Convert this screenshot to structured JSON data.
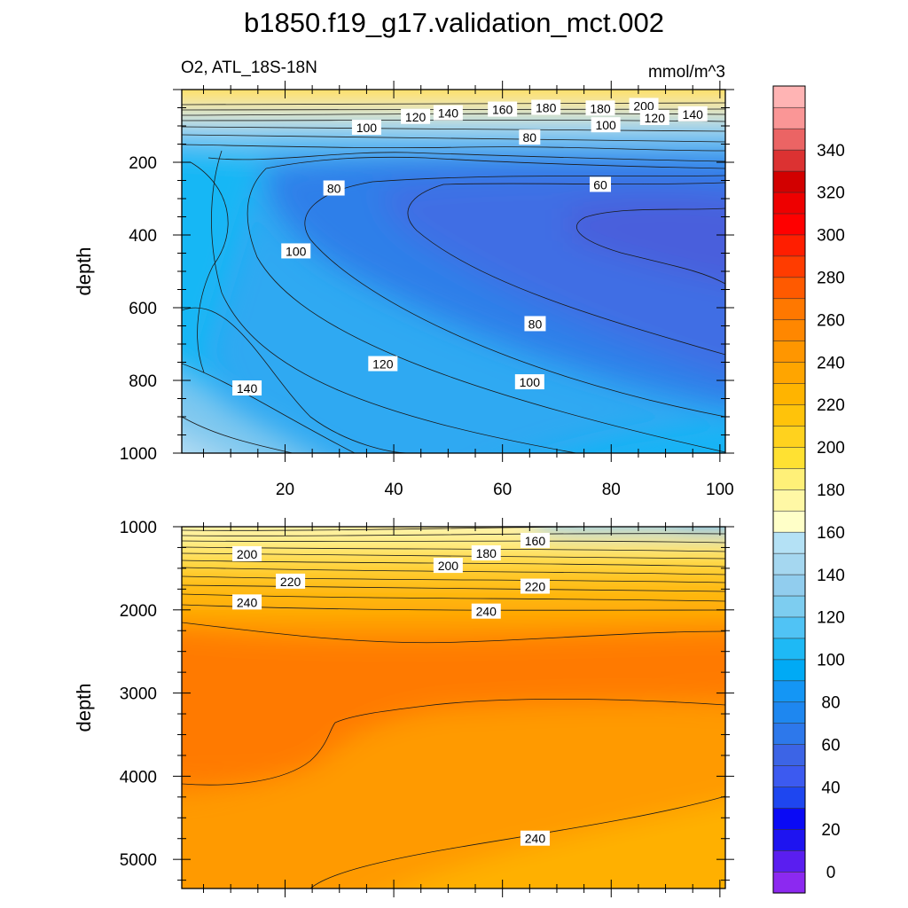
{
  "title": "b1850.f19_g17.validation_mct.002",
  "left_label": "O2, ATL_18S-18N",
  "units_label": "mmol/m^3",
  "chart_data": [
    {
      "type": "heatmap",
      "panel": "upper",
      "variable": "O2",
      "region": "ATL_18S-18N",
      "units": "mmol/m^3",
      "ylabel": "depth",
      "xlabel": "",
      "xlim": [
        1,
        101
      ],
      "ylim": [
        1000,
        0
      ],
      "x_ticks": [
        20,
        40,
        60,
        80,
        100
      ],
      "y_ticks": [
        200,
        400,
        600,
        800,
        1000
      ],
      "contour_interval": 10,
      "shading": [
        {
          "x": 0,
          "y": 50,
          "o2": 210
        },
        {
          "x": 50,
          "y": 90,
          "o2": 160
        },
        {
          "x": 5,
          "y": 400,
          "o2": 115
        },
        {
          "x": 70,
          "y": 400,
          "o2": 55
        },
        {
          "x": 65,
          "y": 650,
          "o2": 80
        },
        {
          "x": 10,
          "y": 950,
          "o2": 155
        },
        {
          "x": 95,
          "y": 950,
          "o2": 110
        }
      ],
      "contour_labels": [
        {
          "x": 35,
          "y": 105,
          "text": "100"
        },
        {
          "x": 44,
          "y": 75,
          "text": "120"
        },
        {
          "x": 50,
          "y": 65,
          "text": "140"
        },
        {
          "x": 60,
          "y": 55,
          "text": "160"
        },
        {
          "x": 68,
          "y": 50,
          "text": "180"
        },
        {
          "x": 78,
          "y": 52,
          "text": "180"
        },
        {
          "x": 86,
          "y": 45,
          "text": "200"
        },
        {
          "x": 88,
          "y": 78,
          "text": "120"
        },
        {
          "x": 95,
          "y": 68,
          "text": "140"
        },
        {
          "x": 79,
          "y": 98,
          "text": "100"
        },
        {
          "x": 65,
          "y": 132,
          "text": "80"
        },
        {
          "x": 29,
          "y": 272,
          "text": "80"
        },
        {
          "x": 22,
          "y": 445,
          "text": "100"
        },
        {
          "x": 78,
          "y": 262,
          "text": "60"
        },
        {
          "x": 66,
          "y": 645,
          "text": "80"
        },
        {
          "x": 38,
          "y": 755,
          "text": "120"
        },
        {
          "x": 65,
          "y": 805,
          "text": "100"
        },
        {
          "x": 13,
          "y": 822,
          "text": "140"
        }
      ]
    },
    {
      "type": "heatmap",
      "panel": "lower",
      "variable": "O2",
      "region": "ATL_18S-18N",
      "units": "mmol/m^3",
      "ylabel": "depth",
      "xlabel": "",
      "xlim": [
        1,
        101
      ],
      "ylim": [
        5350,
        1000
      ],
      "x_ticks": [
        20,
        40,
        60,
        80,
        100
      ],
      "y_ticks": [
        1000,
        2000,
        3000,
        4000,
        5000
      ],
      "contour_interval": 10,
      "shading": [
        {
          "x": 0,
          "y": 1050,
          "o2": 190
        },
        {
          "x": 100,
          "y": 1050,
          "o2": 125
        },
        {
          "x": 50,
          "y": 1600,
          "o2": 215
        },
        {
          "x": 50,
          "y": 2100,
          "o2": 245
        },
        {
          "x": 20,
          "y": 3200,
          "o2": 255
        },
        {
          "x": 70,
          "y": 4000,
          "o2": 245
        },
        {
          "x": 70,
          "y": 5200,
          "o2": 235
        }
      ],
      "contour_labels": [
        {
          "x": 13,
          "y": 1330,
          "text": "200"
        },
        {
          "x": 21,
          "y": 1660,
          "text": "220"
        },
        {
          "x": 13,
          "y": 1910,
          "text": "240"
        },
        {
          "x": 50,
          "y": 1470,
          "text": "200"
        },
        {
          "x": 57,
          "y": 1320,
          "text": "180"
        },
        {
          "x": 66,
          "y": 1170,
          "text": "160"
        },
        {
          "x": 66,
          "y": 1720,
          "text": "220"
        },
        {
          "x": 57,
          "y": 2020,
          "text": "240"
        },
        {
          "x": 66,
          "y": 4750,
          "text": "240"
        }
      ]
    }
  ],
  "colorbar": {
    "labels": [
      "0",
      "20",
      "40",
      "60",
      "80",
      "100",
      "120",
      "140",
      "160",
      "180",
      "200",
      "220",
      "240",
      "260",
      "280",
      "300",
      "320",
      "340"
    ],
    "colors": [
      "#8c29f0",
      "#5a1ef0",
      "#1e14f0",
      "#0a0af5",
      "#1e46f0",
      "#3c5af0",
      "#3c64e6",
      "#2d78eb",
      "#1e87f0",
      "#1496f5",
      "#00aaf5",
      "#1eb9f5",
      "#50c3f5",
      "#7dcdf0",
      "#91cdee",
      "#a5d7f0",
      "#b4e1f5",
      "#ffffc8",
      "#fff8a5",
      "#fff078",
      "#ffe132",
      "#ffd21e",
      "#ffc30a",
      "#ffb400",
      "#ffa500",
      "#ff9600",
      "#ff8700",
      "#ff7800",
      "#ff5a00",
      "#ff3c00",
      "#ff1e00",
      "#ff0000",
      "#ee0000",
      "#d20000",
      "#dc3232",
      "#eb6464",
      "#fa9696",
      "#ffb4b4"
    ]
  }
}
